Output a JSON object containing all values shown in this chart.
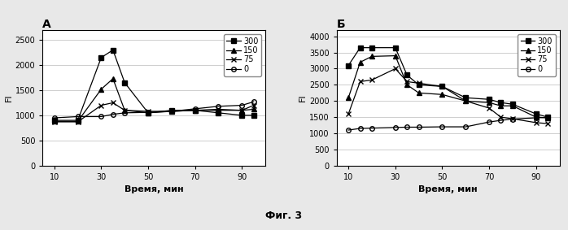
{
  "panel_A": {
    "title": "А",
    "xlabel": "Время, мин",
    "ylabel": "FI",
    "xlim": [
      5,
      100
    ],
    "ylim": [
      0,
      2700
    ],
    "yticks": [
      0,
      500,
      1000,
      1500,
      2000,
      2500
    ],
    "xticks": [
      10,
      30,
      50,
      70,
      90
    ],
    "series": [
      {
        "label": "300",
        "marker": "s",
        "x": [
          10,
          20,
          30,
          35,
          40,
          50,
          60,
          70,
          80,
          90,
          95
        ],
        "y": [
          900,
          900,
          2150,
          2300,
          1650,
          1050,
          1100,
          1100,
          1050,
          1000,
          1000
        ]
      },
      {
        "label": "150",
        "marker": "^",
        "x": [
          10,
          20,
          30,
          35,
          40,
          50,
          60,
          70,
          80,
          90,
          95
        ],
        "y": [
          880,
          880,
          1520,
          1730,
          1100,
          1050,
          1080,
          1100,
          1100,
          1100,
          1120
        ]
      },
      {
        "label": "75",
        "marker": "x",
        "x": [
          10,
          20,
          30,
          35,
          40,
          50,
          60,
          70,
          80,
          90,
          95
        ],
        "y": [
          870,
          870,
          1200,
          1250,
          1100,
          1080,
          1080,
          1100,
          1120,
          1100,
          1200
        ]
      },
      {
        "label": "0",
        "marker": "o",
        "x": [
          10,
          20,
          30,
          35,
          40,
          50,
          60,
          70,
          80,
          90,
          95
        ],
        "y": [
          950,
          975,
          975,
          1020,
          1050,
          1060,
          1080,
          1130,
          1180,
          1200,
          1270
        ]
      }
    ]
  },
  "panel_B": {
    "title": "Б",
    "xlabel": "Время, мин",
    "ylabel": "FI",
    "xlim": [
      5,
      100
    ],
    "ylim": [
      0,
      4200
    ],
    "yticks": [
      0,
      500,
      1000,
      1500,
      2000,
      2500,
      3000,
      3500,
      4000
    ],
    "xticks": [
      10,
      30,
      50,
      70,
      90
    ],
    "series": [
      {
        "label": "300",
        "marker": "s",
        "x": [
          10,
          15,
          20,
          30,
          35,
          40,
          50,
          60,
          70,
          75,
          80,
          90,
          95
        ],
        "y": [
          3100,
          3650,
          3650,
          3650,
          2800,
          2500,
          2450,
          2100,
          2050,
          1950,
          1900,
          1600,
          1500
        ]
      },
      {
        "label": "150",
        "marker": "^",
        "x": [
          10,
          15,
          20,
          30,
          35,
          40,
          50,
          60,
          70,
          75,
          80,
          90,
          95
        ],
        "y": [
          2100,
          3200,
          3380,
          3400,
          2500,
          2250,
          2200,
          2000,
          1950,
          1850,
          1850,
          1500,
          1480
        ]
      },
      {
        "label": "75",
        "marker": "x",
        "x": [
          10,
          15,
          20,
          30,
          35,
          40,
          50,
          60,
          70,
          75,
          80,
          90,
          95
        ],
        "y": [
          1600,
          2600,
          2650,
          3000,
          2600,
          2550,
          2450,
          2000,
          1780,
          1500,
          1450,
          1330,
          1300
        ]
      },
      {
        "label": "0",
        "marker": "o",
        "x": [
          10,
          15,
          20,
          30,
          35,
          40,
          50,
          60,
          70,
          75,
          80,
          90,
          95
        ],
        "y": [
          1100,
          1150,
          1160,
          1180,
          1190,
          1190,
          1200,
          1200,
          1350,
          1400,
          1440,
          1480,
          1490
        ]
      }
    ]
  },
  "figure_label": "Фиг. 3",
  "line_color": "#000000",
  "bg_color": "#e8e8e8",
  "plot_bg": "#ffffff"
}
